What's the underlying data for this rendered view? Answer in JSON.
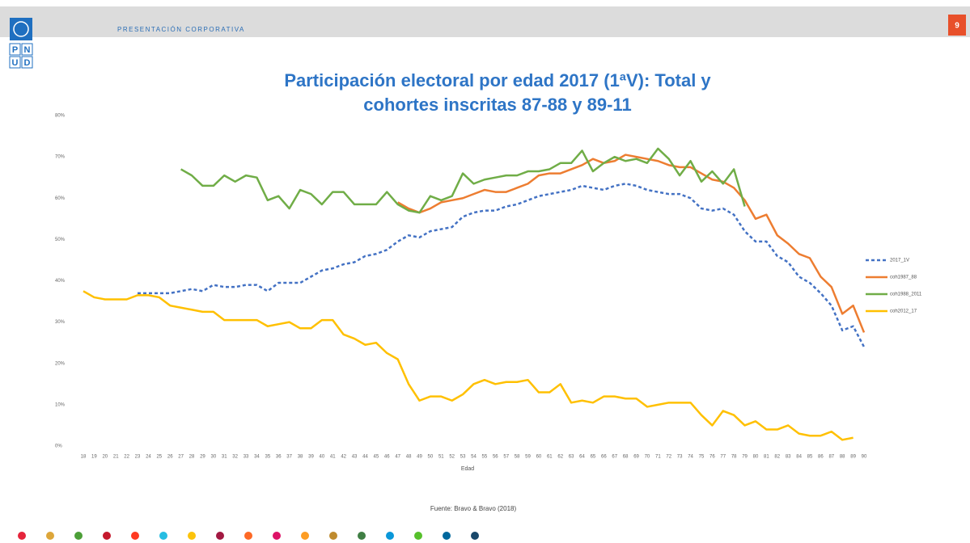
{
  "header": {
    "title": "PRESENTACIÓN CORPORATIVA",
    "page": "9"
  },
  "logo": [
    "P",
    "N",
    "U",
    "D"
  ],
  "source": "Fuente: Bravo & Bravo (2018)",
  "chart_data": {
    "type": "line",
    "title": [
      "Participación electoral por edad 2017 (1ªV): Total y",
      "cohortes inscritas 87-88 y 89-11"
    ],
    "x_label": "Edad",
    "categories": [
      "18",
      "19",
      "20",
      "21",
      "22",
      "23",
      "24",
      "25",
      "26",
      "27",
      "28",
      "29",
      "30",
      "31",
      "32",
      "33",
      "34",
      "35",
      "36",
      "37",
      "38",
      "39",
      "40",
      "41",
      "42",
      "43",
      "44",
      "45",
      "46",
      "47",
      "48",
      "49",
      "50",
      "51",
      "52",
      "53",
      "54",
      "55",
      "56",
      "57",
      "58",
      "59",
      "60",
      "61",
      "62",
      "63",
      "64",
      "65",
      "66",
      "67",
      "68",
      "69",
      "70",
      "71",
      "72",
      "73",
      "74",
      "75",
      "76",
      "77",
      "78",
      "79",
      "80",
      "81",
      "82",
      "83",
      "84",
      "85",
      "86",
      "87",
      "88",
      "89",
      "90"
    ],
    "ylim": [
      0,
      80
    ],
    "yticks": [
      {
        "value": 0,
        "label": "0%"
      },
      {
        "value": 10,
        "label": "10%"
      },
      {
        "value": 20,
        "label": "20%"
      },
      {
        "value": 30,
        "label": "30%"
      },
      {
        "value": 40,
        "label": "40%"
      },
      {
        "value": 50,
        "label": "50%"
      },
      {
        "value": 60,
        "label": "60%"
      },
      {
        "value": 70,
        "label": "70%"
      },
      {
        "value": 80,
        "label": "80%"
      }
    ],
    "grid": false,
    "legend": "right",
    "series": [
      {
        "name": "2017_1V",
        "color": "#4472c4",
        "dashed": true,
        "values": [
          null,
          null,
          null,
          null,
          null,
          37,
          37,
          37,
          37,
          37.5,
          38,
          37.5,
          39,
          38.5,
          38.5,
          39,
          39,
          37.5,
          39.5,
          39.5,
          39.5,
          41,
          42.5,
          43,
          44,
          44.5,
          46,
          46.5,
          47.5,
          49.5,
          51,
          50.5,
          52,
          52.5,
          53,
          55.5,
          56.5,
          57,
          57,
          58,
          58.5,
          59.5,
          60.5,
          61,
          61.5,
          62,
          63,
          62.5,
          62,
          63,
          63.5,
          63,
          62,
          61.5,
          61,
          61,
          60,
          57.5,
          57,
          57.5,
          56,
          52,
          49.5,
          49.5,
          46,
          44.5,
          41,
          39.5,
          37,
          34,
          28,
          29,
          24
        ]
      },
      {
        "name": "coh1987_88",
        "color": "#ed7d31",
        "dashed": false,
        "values": [
          null,
          null,
          null,
          null,
          null,
          null,
          null,
          null,
          null,
          null,
          null,
          null,
          null,
          null,
          null,
          null,
          null,
          null,
          null,
          null,
          null,
          null,
          null,
          null,
          null,
          null,
          null,
          null,
          null,
          59,
          57.5,
          56.5,
          57.5,
          59,
          59.5,
          60,
          61,
          62,
          61.5,
          61.5,
          62.5,
          63.5,
          65.5,
          66,
          66,
          67,
          68,
          69.5,
          68.5,
          69,
          70.5,
          70,
          69.5,
          69,
          68,
          67.5,
          67.5,
          66,
          64.5,
          64,
          62.5,
          59.5,
          55,
          56,
          51,
          49,
          46.5,
          45.5,
          41,
          38.5,
          32,
          34,
          27.5
        ]
      },
      {
        "name": "coh1988_2011",
        "color": "#70ad47",
        "dashed": false,
        "values": [
          null,
          null,
          null,
          null,
          null,
          null,
          null,
          null,
          null,
          67,
          65.5,
          63,
          63,
          65.5,
          64,
          65.5,
          65,
          59.5,
          60.5,
          57.5,
          62,
          61,
          58.5,
          61.5,
          61.5,
          58.5,
          58.5,
          58.5,
          61.5,
          58.5,
          57,
          56.5,
          60.5,
          59.5,
          60.5,
          66,
          63.5,
          64.5,
          65,
          65.5,
          65.5,
          66.5,
          66.5,
          67,
          68.5,
          68.5,
          71.5,
          66.5,
          68.5,
          70,
          69,
          69.5,
          68.5,
          72,
          69.5,
          65.5,
          69,
          64,
          66.5,
          63.5,
          67,
          58,
          null,
          null,
          null,
          null,
          null,
          null,
          null,
          null,
          null,
          null,
          null
        ]
      },
      {
        "name": "coh2012_17",
        "color": "#ffc000",
        "dashed": false,
        "values": [
          37.5,
          36,
          35.5,
          35.5,
          35.5,
          36.5,
          36.5,
          36,
          34,
          33.5,
          33,
          32.5,
          32.5,
          30.5,
          30.5,
          30.5,
          30.5,
          29,
          29.5,
          30,
          28.5,
          28.5,
          30.5,
          30.5,
          27,
          26,
          24.5,
          25,
          22.5,
          21,
          15,
          11,
          12,
          12,
          11,
          12.5,
          15,
          16,
          15,
          15.5,
          15.5,
          16,
          13,
          13,
          15,
          10.5,
          11,
          10.5,
          12,
          12,
          11.5,
          11.5,
          9.5,
          10,
          10.5,
          10.5,
          10.5,
          7.5,
          5,
          8.5,
          7.5,
          5,
          6,
          4,
          4,
          5,
          3,
          2.5,
          2.5,
          3.5,
          1.5,
          2,
          null
        ]
      }
    ]
  }
}
